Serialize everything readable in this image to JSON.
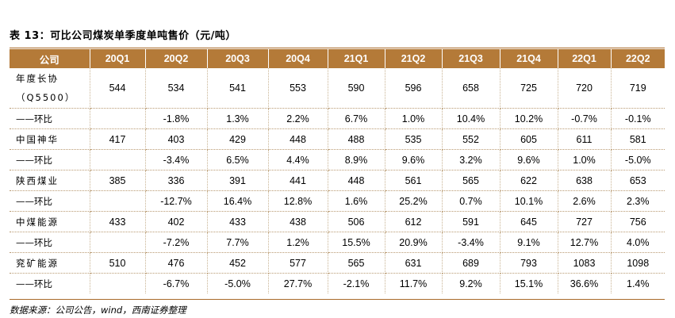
{
  "title": "表 13：可比公司煤炭单季度单吨售价（元/吨）",
  "table": {
    "headers": [
      "公司",
      "20Q1",
      "20Q2",
      "20Q3",
      "20Q4",
      "21Q1",
      "21Q2",
      "21Q3",
      "21Q4",
      "22Q1",
      "22Q2"
    ],
    "rows": [
      {
        "name": [
          "年度长协",
          "（Q5500）"
        ],
        "type": "price",
        "values": [
          "544",
          "534",
          "541",
          "553",
          "590",
          "596",
          "658",
          "725",
          "720",
          "719"
        ]
      },
      {
        "name": [
          "——环比"
        ],
        "type": "change",
        "values": [
          "",
          "-1.8%",
          "1.3%",
          "2.2%",
          "6.7%",
          "1.0%",
          "10.4%",
          "10.2%",
          "-0.7%",
          "-0.1%"
        ]
      },
      {
        "name": [
          "中国神华"
        ],
        "type": "price",
        "values": [
          "417",
          "403",
          "429",
          "448",
          "488",
          "535",
          "552",
          "605",
          "611",
          "581"
        ]
      },
      {
        "name": [
          "——环比"
        ],
        "type": "change",
        "values": [
          "",
          "-3.4%",
          "6.5%",
          "4.4%",
          "8.9%",
          "9.6%",
          "3.2%",
          "9.6%",
          "1.0%",
          "-5.0%"
        ]
      },
      {
        "name": [
          "陕西煤业"
        ],
        "type": "price",
        "values": [
          "385",
          "336",
          "391",
          "441",
          "448",
          "561",
          "565",
          "622",
          "638",
          "653"
        ]
      },
      {
        "name": [
          "——环比"
        ],
        "type": "change",
        "values": [
          "",
          "-12.7%",
          "16.4%",
          "12.8%",
          "1.6%",
          "25.2%",
          "0.7%",
          "10.1%",
          "2.6%",
          "2.3%"
        ]
      },
      {
        "name": [
          "中煤能源"
        ],
        "type": "price",
        "values": [
          "433",
          "402",
          "433",
          "438",
          "506",
          "612",
          "591",
          "645",
          "727",
          "756"
        ]
      },
      {
        "name": [
          "——环比"
        ],
        "type": "change",
        "values": [
          "",
          "-7.2%",
          "7.7%",
          "1.2%",
          "15.5%",
          "20.9%",
          "-3.4%",
          "9.1%",
          "12.7%",
          "4.0%"
        ]
      },
      {
        "name": [
          "兖矿能源"
        ],
        "type": "price",
        "values": [
          "510",
          "476",
          "452",
          "577",
          "565",
          "631",
          "689",
          "793",
          "1083",
          "1098"
        ]
      },
      {
        "name": [
          "——环比"
        ],
        "type": "change",
        "values": [
          "",
          "-6.7%",
          "-5.0%",
          "27.7%",
          "-2.1%",
          "11.7%",
          "9.2%",
          "15.1%",
          "36.6%",
          "1.4%"
        ]
      }
    ]
  },
  "source": "数据来源：公司公告，wind，西南证券整理",
  "colors": {
    "header_bg": "#b47a38",
    "header_text": "#ffffff",
    "rule": "#a96a2a"
  }
}
